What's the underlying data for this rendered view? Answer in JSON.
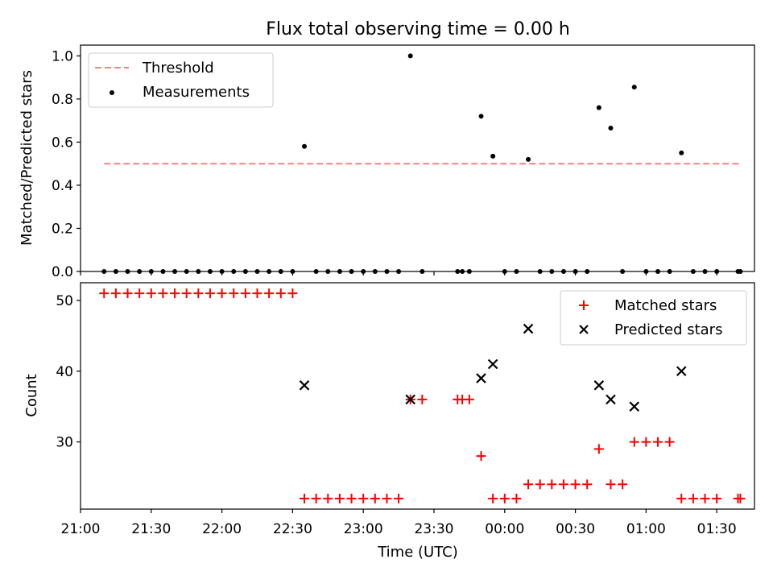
{
  "title": "Flux total observing time = 0.00 h",
  "colors": {
    "threshold": "#ff7f7f",
    "measurements": "#000000",
    "matched": "#ff0000",
    "predicted": "#000000"
  },
  "chart_data": [
    {
      "type": "scatter",
      "ylabel": "Matched/Predicted stars",
      "ylim": [
        0,
        1.05
      ],
      "yticks": [
        "0.0",
        "0.2",
        "0.4",
        "0.6",
        "0.8",
        "1.0"
      ],
      "xlim": [
        "21:00",
        "01:46"
      ],
      "threshold": {
        "value": 0.5,
        "x_range": [
          "21:10",
          "01:40"
        ]
      },
      "legend": {
        "position": "upper-left",
        "threshold_label": "Threshold",
        "measurements_label": "Measurements"
      },
      "series": [
        {
          "name": "Measurements",
          "points": [
            [
              "21:10",
              0
            ],
            [
              "21:15",
              0
            ],
            [
              "21:20",
              0
            ],
            [
              "21:25",
              0
            ],
            [
              "21:30",
              0
            ],
            [
              "21:35",
              0
            ],
            [
              "21:40",
              0
            ],
            [
              "21:45",
              0
            ],
            [
              "21:50",
              0
            ],
            [
              "21:55",
              0
            ],
            [
              "22:00",
              0
            ],
            [
              "22:05",
              0
            ],
            [
              "22:10",
              0
            ],
            [
              "22:15",
              0
            ],
            [
              "22:20",
              0
            ],
            [
              "22:25",
              0
            ],
            [
              "22:30",
              0
            ],
            [
              "22:35",
              0.58
            ],
            [
              "22:40",
              0
            ],
            [
              "22:45",
              0
            ],
            [
              "22:50",
              0
            ],
            [
              "22:55",
              0
            ],
            [
              "23:00",
              0
            ],
            [
              "23:05",
              0
            ],
            [
              "23:10",
              0
            ],
            [
              "23:15",
              0
            ],
            [
              "23:20",
              1.0
            ],
            [
              "23:25",
              0
            ],
            [
              "23:40",
              0
            ],
            [
              "23:42",
              0
            ],
            [
              "23:45",
              0
            ],
            [
              "23:50",
              0.72
            ],
            [
              "23:55",
              0.535
            ],
            [
              "00:00",
              0
            ],
            [
              "00:05",
              0
            ],
            [
              "00:10",
              0.52
            ],
            [
              "00:15",
              0
            ],
            [
              "00:20",
              0
            ],
            [
              "00:25",
              0
            ],
            [
              "00:30",
              0
            ],
            [
              "00:35",
              0
            ],
            [
              "00:40",
              0.76
            ],
            [
              "00:45",
              0.665
            ],
            [
              "00:50",
              0
            ],
            [
              "00:55",
              0.855
            ],
            [
              "01:00",
              0
            ],
            [
              "01:05",
              0
            ],
            [
              "01:10",
              0
            ],
            [
              "01:15",
              0.55
            ],
            [
              "01:20",
              0
            ],
            [
              "01:25",
              0
            ],
            [
              "01:30",
              0
            ],
            [
              "01:39",
              0
            ],
            [
              "01:40",
              0
            ]
          ]
        }
      ]
    },
    {
      "type": "scatter",
      "ylabel": "Count",
      "xlabel": "Time (UTC)",
      "ylim": [
        20.5,
        52.5
      ],
      "yticks": [
        "30",
        "40",
        "50"
      ],
      "xlim": [
        "21:00",
        "01:46"
      ],
      "xticks": [
        "21:00",
        "21:30",
        "22:00",
        "22:30",
        "23:00",
        "23:30",
        "00:00",
        "00:30",
        "01:00",
        "01:30"
      ],
      "legend": {
        "position": "upper-right"
      },
      "series": [
        {
          "name": "Matched stars",
          "points": [
            [
              "21:10",
              51
            ],
            [
              "21:15",
              51
            ],
            [
              "21:20",
              51
            ],
            [
              "21:25",
              51
            ],
            [
              "21:30",
              51
            ],
            [
              "21:35",
              51
            ],
            [
              "21:40",
              51
            ],
            [
              "21:45",
              51
            ],
            [
              "21:50",
              51
            ],
            [
              "21:55",
              51
            ],
            [
              "22:00",
              51
            ],
            [
              "22:05",
              51
            ],
            [
              "22:10",
              51
            ],
            [
              "22:15",
              51
            ],
            [
              "22:20",
              51
            ],
            [
              "22:25",
              51
            ],
            [
              "22:30",
              51
            ],
            [
              "22:35",
              22
            ],
            [
              "22:40",
              22
            ],
            [
              "22:45",
              22
            ],
            [
              "22:50",
              22
            ],
            [
              "22:55",
              22
            ],
            [
              "23:00",
              22
            ],
            [
              "23:05",
              22
            ],
            [
              "23:10",
              22
            ],
            [
              "23:15",
              22
            ],
            [
              "23:20",
              36
            ],
            [
              "23:25",
              36
            ],
            [
              "23:40",
              36
            ],
            [
              "23:42",
              36
            ],
            [
              "23:45",
              36
            ],
            [
              "23:50",
              28
            ],
            [
              "23:55",
              22
            ],
            [
              "00:00",
              22
            ],
            [
              "00:05",
              22
            ],
            [
              "00:10",
              24
            ],
            [
              "00:15",
              24
            ],
            [
              "00:20",
              24
            ],
            [
              "00:25",
              24
            ],
            [
              "00:30",
              24
            ],
            [
              "00:35",
              24
            ],
            [
              "00:40",
              29
            ],
            [
              "00:45",
              24
            ],
            [
              "00:50",
              24
            ],
            [
              "00:55",
              30
            ],
            [
              "01:00",
              30
            ],
            [
              "01:05",
              30
            ],
            [
              "01:10",
              30
            ],
            [
              "01:15",
              22
            ],
            [
              "01:20",
              22
            ],
            [
              "01:25",
              22
            ],
            [
              "01:30",
              22
            ],
            [
              "01:39",
              22
            ],
            [
              "01:40",
              22
            ]
          ]
        },
        {
          "name": "Predicted stars",
          "points": [
            [
              "22:35",
              38
            ],
            [
              "23:20",
              36
            ],
            [
              "23:50",
              39
            ],
            [
              "23:55",
              41
            ],
            [
              "00:10",
              46
            ],
            [
              "00:40",
              38
            ],
            [
              "00:45",
              36
            ],
            [
              "00:55",
              35
            ],
            [
              "01:15",
              40
            ]
          ]
        }
      ]
    }
  ]
}
